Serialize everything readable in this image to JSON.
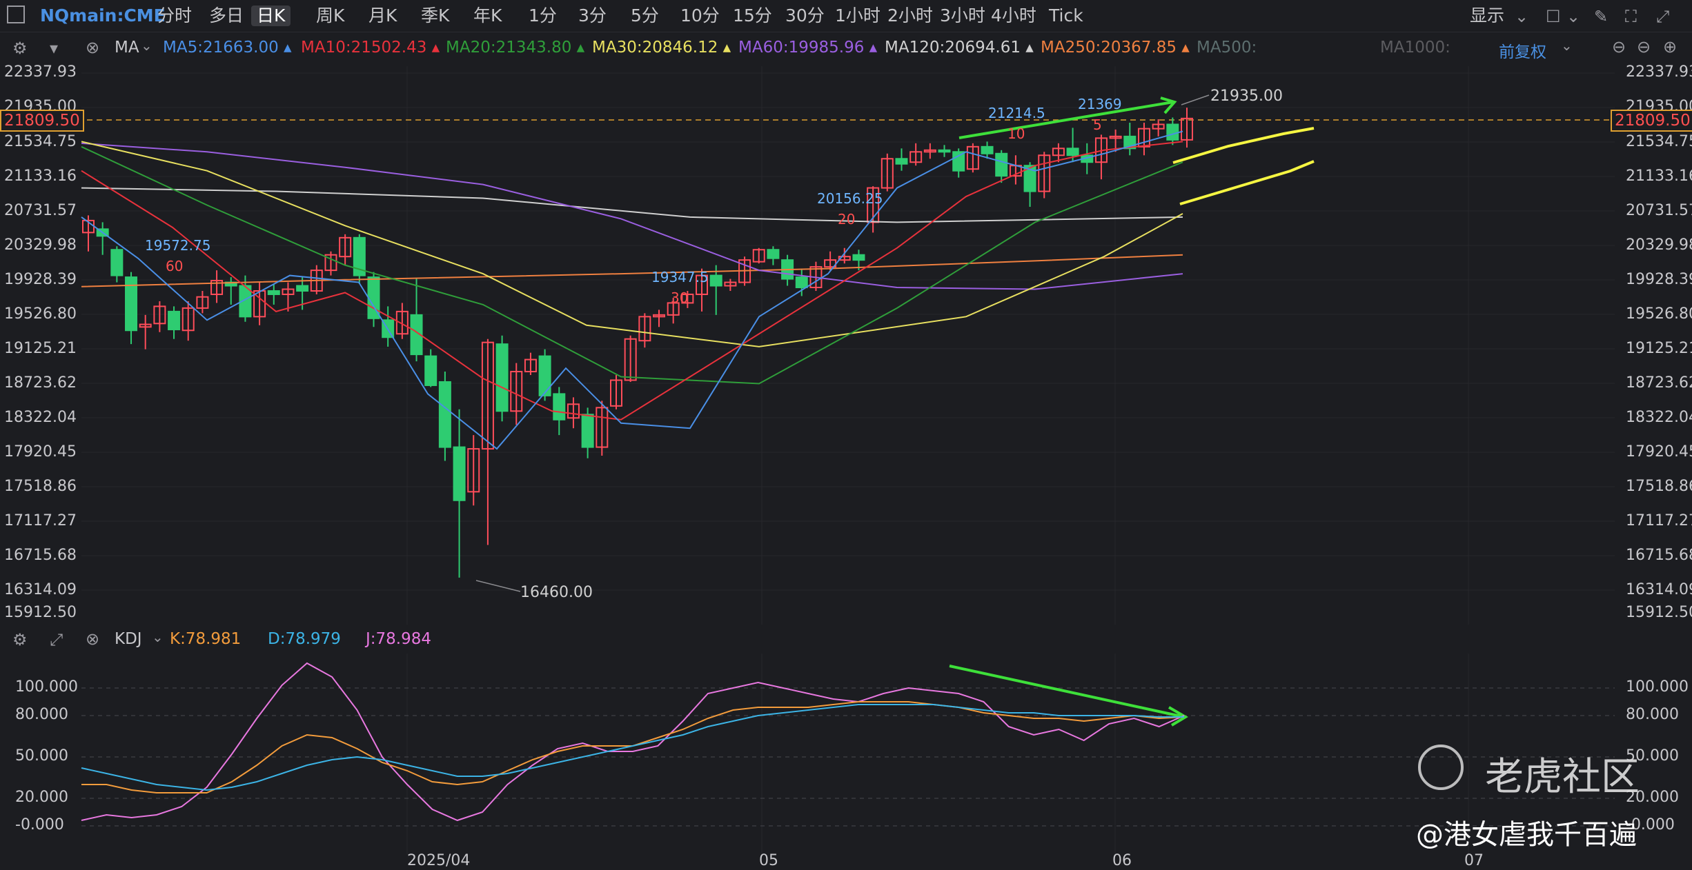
{
  "toolbar": {
    "symbol": "NQmain:CME",
    "periods": [
      "分时",
      "多日",
      "日K",
      "周K",
      "月K",
      "季K",
      "年K",
      "1分",
      "3分",
      "5分",
      "10分",
      "15分",
      "30分",
      "1小时",
      "2小时",
      "3小时",
      "4小时",
      "Tick"
    ],
    "active_period": "日K",
    "display_label": "显示"
  },
  "ma_bar": {
    "label": "MA",
    "items": [
      {
        "text": "MA5:21663.00",
        "color": "#4a8fe6"
      },
      {
        "text": "MA10:21502.43",
        "color": "#e8323c"
      },
      {
        "text": "MA20:21343.80",
        "color": "#2f9e3a"
      },
      {
        "text": "MA30:20846.12",
        "color": "#e8e060"
      },
      {
        "text": "MA60:19985.96",
        "color": "#9a5fe0"
      },
      {
        "text": "MA120:20694.61",
        "color": "#d0d0d0"
      },
      {
        "text": "MA250:20367.85",
        "color": "#f08040"
      },
      {
        "text": "MA500:",
        "color": "#5c6e6e"
      },
      {
        "text": "MA1000:",
        "color": "#5c5c60"
      }
    ],
    "adjust": "前复权"
  },
  "price_axis": [
    "22337.93",
    "21935.00",
    "21534.75",
    "21133.16",
    "20731.57",
    "20329.98",
    "19928.39",
    "19526.80",
    "19125.21",
    "18723.62",
    "18322.04",
    "17920.45",
    "17518.86",
    "17117.27",
    "16715.68",
    "16314.09",
    "15912.50"
  ],
  "current_price": "21809.50",
  "kdj_bar": {
    "label": "KDJ",
    "k": "K:78.981",
    "d": "D:78.979",
    "j": "J:78.984"
  },
  "kdj_axis": [
    "100.000",
    "80.000",
    "50.000",
    "20.000",
    "-0.000"
  ],
  "date_axis": [
    "2025/04",
    "05",
    "06",
    "07"
  ],
  "annotations": {
    "high": "21935.00",
    "low": "16460.00",
    "a1": "19572.75",
    "a1n": "60",
    "a2": "19347.5",
    "a2n": "30",
    "a3": "20156.25",
    "a3n": "20",
    "a4": "21214.5",
    "a4n": "10",
    "a5": "21369",
    "a5n": "5"
  },
  "watermark": {
    "brand": "老虎社区",
    "author": "@港女虐我千百遍"
  },
  "colors": {
    "up": "#ff4d5a",
    "down": "#2ecc71",
    "k": "#f39c3c",
    "d": "#3cb4e6",
    "j": "#e878e0"
  }
}
